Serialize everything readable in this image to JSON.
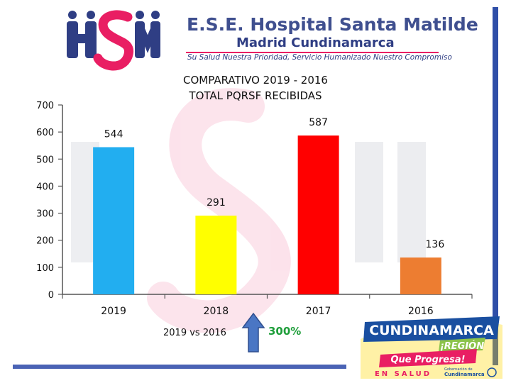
{
  "header": {
    "brand_title": "E.S.E. Hospital Santa Matilde",
    "brand_subtitle": "Madrid Cundinamarca",
    "brand_tagline": "Su Salud Nuestra Prioridad, Servicio Humanizado Nuestro Compromiso",
    "logo_text": "HSM"
  },
  "chart_data": {
    "type": "bar",
    "title_line1": "COMPARATIVO 2019 - 2016",
    "title_line2": "TOTAL PQRSF RECIBIDAS",
    "categories": [
      "2019",
      "2018",
      "2017",
      "2016"
    ],
    "values": [
      544,
      291,
      587,
      136
    ],
    "value_labels": [
      "544",
      "291",
      "587",
      "136"
    ],
    "colors": [
      "#22aef0",
      "#ffff00",
      "#ff0000",
      "#ed7d31"
    ],
    "ylim": [
      0,
      700
    ],
    "yticks": [
      "0",
      "100",
      "200",
      "300",
      "400",
      "500",
      "600",
      "700"
    ],
    "grid": false
  },
  "footer": {
    "comparison_label": "2019 vs 2016",
    "comparison_value": "300%",
    "arrow_icon": "up-arrow-icon"
  },
  "badge": {
    "line1": "CUNDINAMARCA",
    "line2": "¡REGIÓN",
    "line3": "Que Progresa!",
    "line4": "EN SALUD",
    "gov_label": "Gobernación de",
    "gov_name": "Cundinamarca"
  }
}
